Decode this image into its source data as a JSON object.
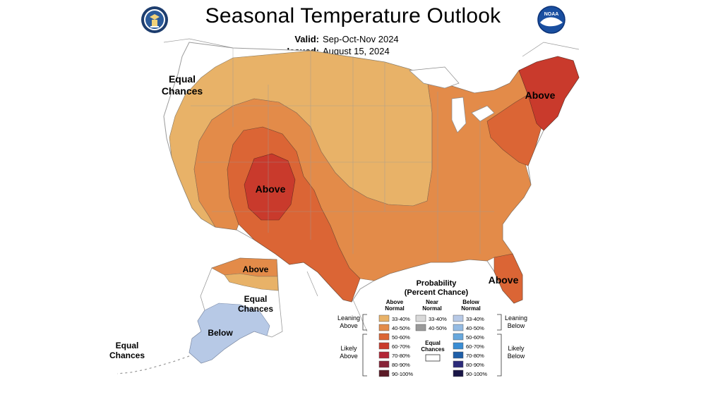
{
  "header": {
    "title": "Seasonal Temperature Outlook",
    "valid_label": "Valid:",
    "valid_value": "Sep-Oct-Nov 2024",
    "issued_label": "Issued:",
    "issued_value": "August 15, 2024",
    "left_logo": "doc-seal-logo",
    "right_logo": "noaa-logo",
    "right_logo_text": "NOAA"
  },
  "map_labels": {
    "equal_chances_west_1": "Equal",
    "equal_chances_west_2": "Chances",
    "above_rockies": "Above",
    "above_northeast": "Above",
    "above_florida": "Above",
    "above_alaska": "Above",
    "equal_chances_alaska_1": "Equal",
    "equal_chances_alaska_2": "Chances",
    "below_alaska": "Below",
    "equal_chances_aleutian_1": "Equal",
    "equal_chances_aleutian_2": "Chances"
  },
  "legend": {
    "title_1": "Probability",
    "title_2": "(Percent Chance)",
    "above_header_1": "Above",
    "above_header_2": "Normal",
    "near_header_1": "Near",
    "near_header_2": "Normal",
    "below_header_1": "Below",
    "below_header_2": "Normal",
    "leaning_above_1": "Leaning",
    "leaning_above_2": "Above",
    "likely_above_1": "Likely",
    "likely_above_2": "Above",
    "leaning_below_1": "Leaning",
    "leaning_below_2": "Below",
    "likely_below_1": "Likely",
    "likely_below_2": "Below",
    "equal_chances_1": "Equal",
    "equal_chances_2": "Chances",
    "ranges": [
      "33-40%",
      "40-50%",
      "50-60%",
      "60-70%",
      "70-80%",
      "80-90%",
      "90-100%"
    ],
    "near_ranges": [
      "33-40%",
      "40-50%"
    ],
    "above_colors": [
      "#e8b268",
      "#e38b49",
      "#db6535",
      "#c93a2c",
      "#b32636",
      "#862236",
      "#5b1a26"
    ],
    "near_colors": [
      "#d9d9d9",
      "#999999"
    ],
    "below_colors": [
      "#b7c9e6",
      "#94bbe3",
      "#68a8dd",
      "#3a8dd4",
      "#1f5fa8",
      "#2b2a7a",
      "#191546"
    ]
  },
  "colors": {
    "above_33_40": "#e8b268",
    "above_40_50": "#e38b49",
    "above_50_60": "#db6535",
    "above_60_70": "#c93a2c",
    "below_33_40": "#b7c9e6"
  }
}
